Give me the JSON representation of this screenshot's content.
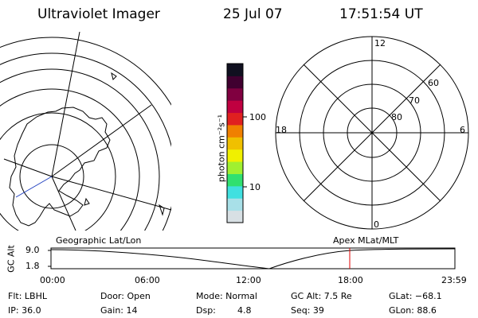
{
  "header": {
    "instrument": "Ultraviolet Imager",
    "date": "25 Jul 07",
    "time": "17:51:54 UT"
  },
  "colorbar": {
    "unit_label": "photon cm⁻²s⁻¹",
    "tick_100": "100",
    "tick_10": "10",
    "colors": [
      "#d8e0e4",
      "#a8e0e8",
      "#40e0e0",
      "#30e070",
      "#a0f030",
      "#f0f000",
      "#f0c000",
      "#f08000",
      "#e02020",
      "#c00040",
      "#800040",
      "#400030",
      "#101020"
    ]
  },
  "polar_plot": {
    "clock_labels": {
      "top": "12",
      "left": "18",
      "right": "6",
      "bottom": "0"
    },
    "lat_labels": [
      "60",
      "70",
      "80"
    ]
  },
  "map_labels": {
    "left_caption": "Geographic Lat/Lon",
    "right_caption": "Apex MLat/MLT"
  },
  "timeline": {
    "ylabel": "GC Alt",
    "y_ticks": [
      "9.0",
      "1.8"
    ],
    "x_ticks": [
      "00:00",
      "06:00",
      "12:00",
      "18:00",
      "23:59"
    ],
    "marker_color": "#e00000"
  },
  "info": {
    "flt": "Flt: LBHL",
    "ip": "IP: 36.0",
    "door": "Door: Open",
    "gain": "Gain: 14",
    "mode": "Mode: Normal",
    "dsp": "Dsp:",
    "dsp_val": "4.8",
    "gcalt": "GC Alt: 7.5 Re",
    "seq": "Seq: 39",
    "glat": "GLat: −68.1",
    "glon": "GLon:  88.6"
  }
}
